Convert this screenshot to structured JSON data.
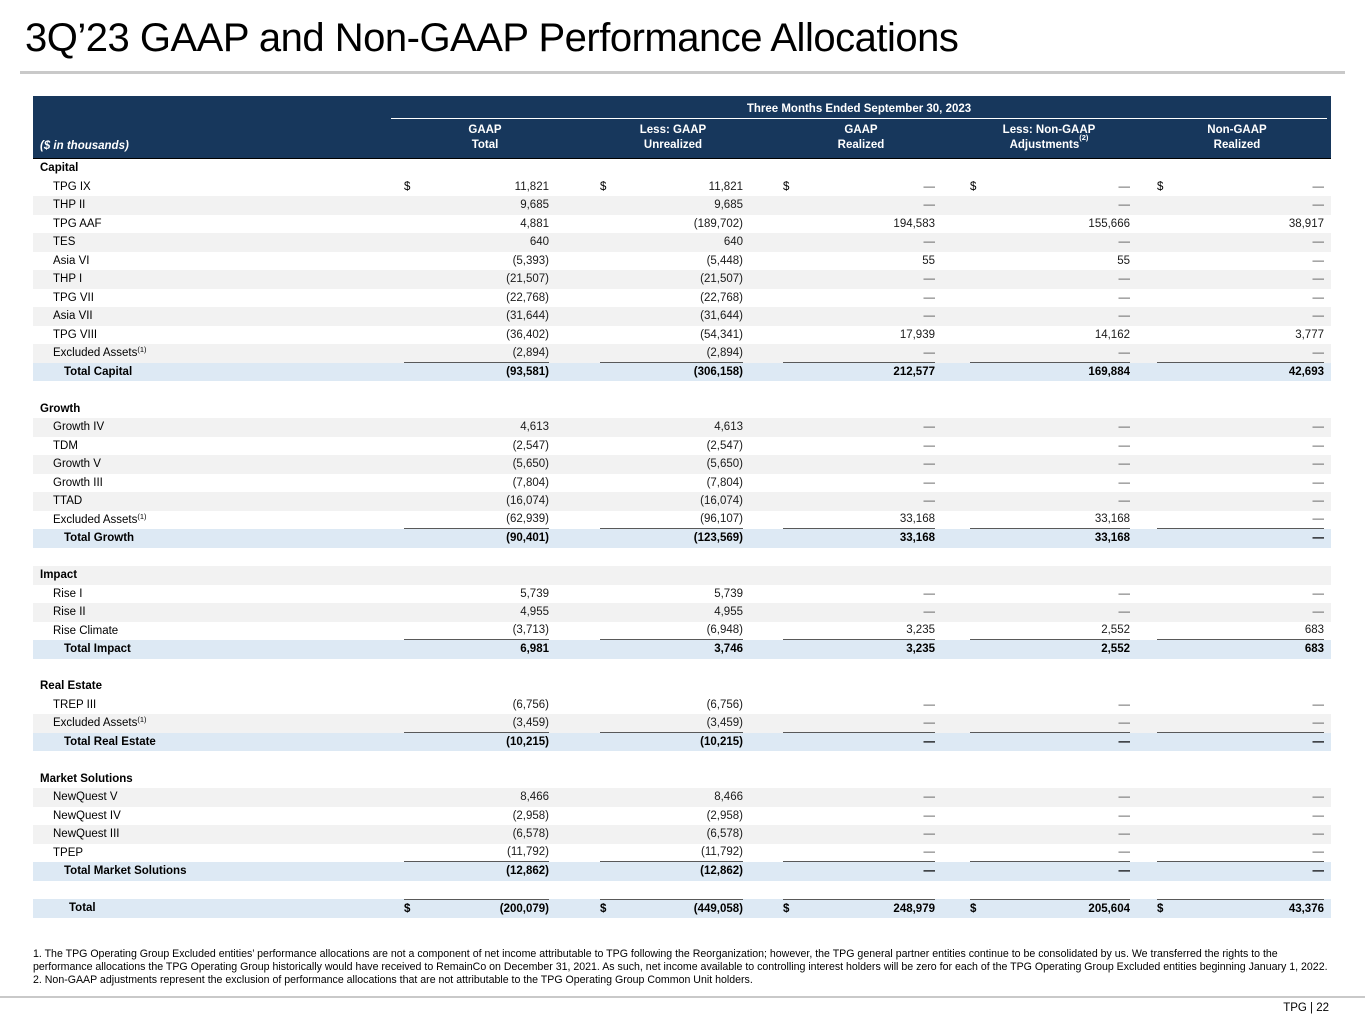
{
  "slide": {
    "title": "3Q’23 GAAP and Non-GAAP Performance Allocations",
    "footer": "TPG | 22"
  },
  "table": {
    "units_label": "($ in thousands)",
    "period_header": "Three Months Ended September 30, 2023",
    "columns": [
      {
        "line1": "GAAP",
        "line2": "Total"
      },
      {
        "line1": "Less: GAAP",
        "line2": "Unrealized"
      },
      {
        "line1": "GAAP",
        "line2": "Realized"
      },
      {
        "line1": "Less: Non-GAAP",
        "line2": "Adjustments",
        "sup": "(2)"
      },
      {
        "line1": "Non-GAAP",
        "line2": "Realized"
      }
    ],
    "rows": [
      {
        "type": "section",
        "label": "Capital"
      },
      {
        "type": "data",
        "label": "TPG IX",
        "dollar": true,
        "values": [
          "11,821",
          "11,821",
          "—",
          "—",
          "—"
        ]
      },
      {
        "type": "data",
        "label": "THP II",
        "shade": "gray",
        "values": [
          "9,685",
          "9,685",
          "—",
          "—",
          "—"
        ]
      },
      {
        "type": "data",
        "label": "TPG AAF",
        "values": [
          "4,881",
          "(189,702)",
          "194,583",
          "155,666",
          "38,917"
        ]
      },
      {
        "type": "data",
        "label": "TES",
        "shade": "gray",
        "values": [
          "640",
          "640",
          "—",
          "—",
          "—"
        ]
      },
      {
        "type": "data",
        "label": "Asia VI",
        "values": [
          "(5,393)",
          "(5,448)",
          "55",
          "55",
          "—"
        ]
      },
      {
        "type": "data",
        "label": "THP I",
        "shade": "gray",
        "values": [
          "(21,507)",
          "(21,507)",
          "—",
          "—",
          "—"
        ]
      },
      {
        "type": "data",
        "label": "TPG VII",
        "values": [
          "(22,768)",
          "(22,768)",
          "—",
          "—",
          "—"
        ]
      },
      {
        "type": "data",
        "label": "Asia VII",
        "shade": "gray",
        "values": [
          "(31,644)",
          "(31,644)",
          "—",
          "—",
          "—"
        ]
      },
      {
        "type": "data",
        "label": "TPG VIII",
        "values": [
          "(36,402)",
          "(54,341)",
          "17,939",
          "14,162",
          "3,777"
        ]
      },
      {
        "type": "data",
        "label": "Excluded Assets",
        "sup": "(1)",
        "shade": "gray",
        "underline": true,
        "values": [
          "(2,894)",
          "(2,894)",
          "—",
          "—",
          "—"
        ]
      },
      {
        "type": "total",
        "label": "Total Capital",
        "values": [
          "(93,581)",
          "(306,158)",
          "212,577",
          "169,884",
          "42,693"
        ]
      },
      {
        "type": "spacer"
      },
      {
        "type": "section",
        "label": "Growth"
      },
      {
        "type": "data",
        "label": "Growth IV",
        "shade": "gray",
        "values": [
          "4,613",
          "4,613",
          "—",
          "—",
          "—"
        ]
      },
      {
        "type": "data",
        "label": "TDM",
        "values": [
          "(2,547)",
          "(2,547)",
          "—",
          "—",
          "—"
        ]
      },
      {
        "type": "data",
        "label": "Growth V",
        "shade": "gray",
        "values": [
          "(5,650)",
          "(5,650)",
          "—",
          "—",
          "—"
        ]
      },
      {
        "type": "data",
        "label": "Growth III",
        "values": [
          "(7,804)",
          "(7,804)",
          "—",
          "—",
          "—"
        ]
      },
      {
        "type": "data",
        "label": "TTAD",
        "shade": "gray",
        "values": [
          "(16,074)",
          "(16,074)",
          "—",
          "—",
          "—"
        ]
      },
      {
        "type": "data",
        "label": "Excluded Assets",
        "sup": "(1)",
        "underline": true,
        "values": [
          "(62,939)",
          "(96,107)",
          "33,168",
          "33,168",
          "—"
        ]
      },
      {
        "type": "total",
        "label": "Total Growth",
        "values": [
          "(90,401)",
          "(123,569)",
          "33,168",
          "33,168",
          "—"
        ]
      },
      {
        "type": "spacer"
      },
      {
        "type": "section",
        "label": "Impact",
        "shade": "gray"
      },
      {
        "type": "data",
        "label": "Rise I",
        "values": [
          "5,739",
          "5,739",
          "—",
          "—",
          "—"
        ]
      },
      {
        "type": "data",
        "label": "Rise II",
        "shade": "gray",
        "values": [
          "4,955",
          "4,955",
          "—",
          "—",
          "—"
        ]
      },
      {
        "type": "data",
        "label": "Rise Climate",
        "underline": true,
        "values": [
          "(3,713)",
          "(6,948)",
          "3,235",
          "2,552",
          "683"
        ]
      },
      {
        "type": "total",
        "label": "Total Impact",
        "values": [
          "6,981",
          "3,746",
          "3,235",
          "2,552",
          "683"
        ]
      },
      {
        "type": "spacer"
      },
      {
        "type": "section",
        "label": "Real Estate"
      },
      {
        "type": "data",
        "label": "TREP III",
        "values": [
          "(6,756)",
          "(6,756)",
          "—",
          "—",
          "—"
        ]
      },
      {
        "type": "data",
        "label": "Excluded Assets",
        "sup": "(1)",
        "shade": "gray",
        "underline": true,
        "values": [
          "(3,459)",
          "(3,459)",
          "—",
          "—",
          "—"
        ]
      },
      {
        "type": "total",
        "label": "Total Real Estate",
        "values": [
          "(10,215)",
          "(10,215)",
          "—",
          "—",
          "—"
        ]
      },
      {
        "type": "spacer"
      },
      {
        "type": "section",
        "label": "Market Solutions"
      },
      {
        "type": "data",
        "label": "NewQuest V",
        "shade": "gray",
        "values": [
          "8,466",
          "8,466",
          "—",
          "—",
          "—"
        ]
      },
      {
        "type": "data",
        "label": "NewQuest IV",
        "values": [
          "(2,958)",
          "(2,958)",
          "—",
          "—",
          "—"
        ]
      },
      {
        "type": "data",
        "label": "NewQuest III",
        "shade": "gray",
        "values": [
          "(6,578)",
          "(6,578)",
          "—",
          "—",
          "—"
        ]
      },
      {
        "type": "data",
        "label": "TPEP",
        "underline": true,
        "values": [
          "(11,792)",
          "(11,792)",
          "—",
          "—",
          "—"
        ]
      },
      {
        "type": "total",
        "label": "Total Market Solutions",
        "values": [
          "(12,862)",
          "(12,862)",
          "—",
          "—",
          "—"
        ]
      },
      {
        "type": "spacer"
      },
      {
        "type": "grandtotal",
        "label": "Total",
        "dollar": true,
        "values": [
          "(200,079)",
          "(449,058)",
          "248,979",
          "205,604",
          "43,376"
        ]
      }
    ]
  },
  "footnotes": [
    "1. The TPG Operating Group Excluded entities’ performance allocations are not a component of net income attributable to TPG following the Reorganization; however, the TPG general partner entities continue to be consolidated by us. We transferred the rights to the performance allocations the TPG Operating Group historically would have received to RemainCo on December 31, 2021. As such, net income available to controlling interest holders will be zero for each of the TPG Operating Group Excluded entities beginning January 1, 2022.",
    "2. Non-GAAP adjustments represent the exclusion of performance allocations that are not attributable to the TPG Operating Group Common Unit holders."
  ]
}
